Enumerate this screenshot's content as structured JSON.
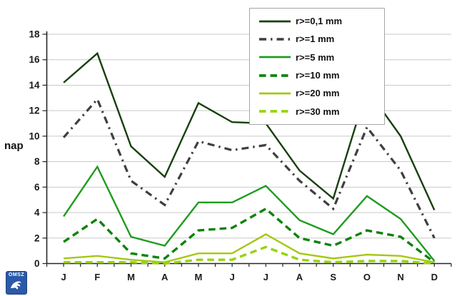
{
  "y_axis_title": "nap",
  "logo": {
    "text": "OMSZ",
    "color": "#2a5aa8"
  },
  "axis": {
    "line_color": "#262626",
    "grid_color": "#c9c9c9",
    "label_color": "#1a1a1a"
  },
  "chart_data": {
    "type": "line",
    "title": "",
    "xlabel": "",
    "ylabel": "nap",
    "ylim": [
      0,
      18
    ],
    "ytick_step": 2,
    "grid": true,
    "legend_position": "top-right",
    "categories": [
      "J",
      "F",
      "M",
      "A",
      "M",
      "J",
      "J",
      "A",
      "S",
      "O",
      "N",
      "D"
    ],
    "series": [
      {
        "name": "r>=0,1 mm",
        "color": "#17400e",
        "dash": "solid",
        "width": 2.4,
        "values": [
          14.2,
          16.5,
          9.2,
          6.8,
          12.6,
          11.1,
          11.0,
          7.3,
          5.1,
          13.7,
          10.0,
          4.2
        ]
      },
      {
        "name": "r>=1 mm",
        "color": "#3f3f3f",
        "dash": "dashdot",
        "width": 3.2,
        "values": [
          9.9,
          12.9,
          6.5,
          4.6,
          9.6,
          8.9,
          9.3,
          6.5,
          4.3,
          10.7,
          7.3,
          2.0
        ]
      },
      {
        "name": "r>=5 mm",
        "color": "#1e9c1e",
        "dash": "solid",
        "width": 2.4,
        "values": [
          3.7,
          7.6,
          2.1,
          1.4,
          4.8,
          4.8,
          6.1,
          3.4,
          2.3,
          5.3,
          3.5,
          0.2
        ]
      },
      {
        "name": "r>=10 mm",
        "color": "#0b840b",
        "dash": "dashed",
        "width": 3.4,
        "values": [
          1.7,
          3.5,
          0.8,
          0.4,
          2.6,
          2.8,
          4.3,
          2.0,
          1.4,
          2.6,
          2.1,
          0.1
        ]
      },
      {
        "name": "r>=20 mm",
        "color": "#a4c814",
        "dash": "solid",
        "width": 2.4,
        "values": [
          0.4,
          0.6,
          0.3,
          0.1,
          0.8,
          0.8,
          2.3,
          0.8,
          0.4,
          0.7,
          0.6,
          0.1
        ]
      },
      {
        "name": "r>=30 mm",
        "color": "#96d40e",
        "dash": "dashed",
        "width": 3.4,
        "values": [
          0.1,
          0.1,
          0.1,
          0.0,
          0.3,
          0.3,
          1.3,
          0.3,
          0.1,
          0.2,
          0.2,
          0.0
        ]
      }
    ]
  }
}
